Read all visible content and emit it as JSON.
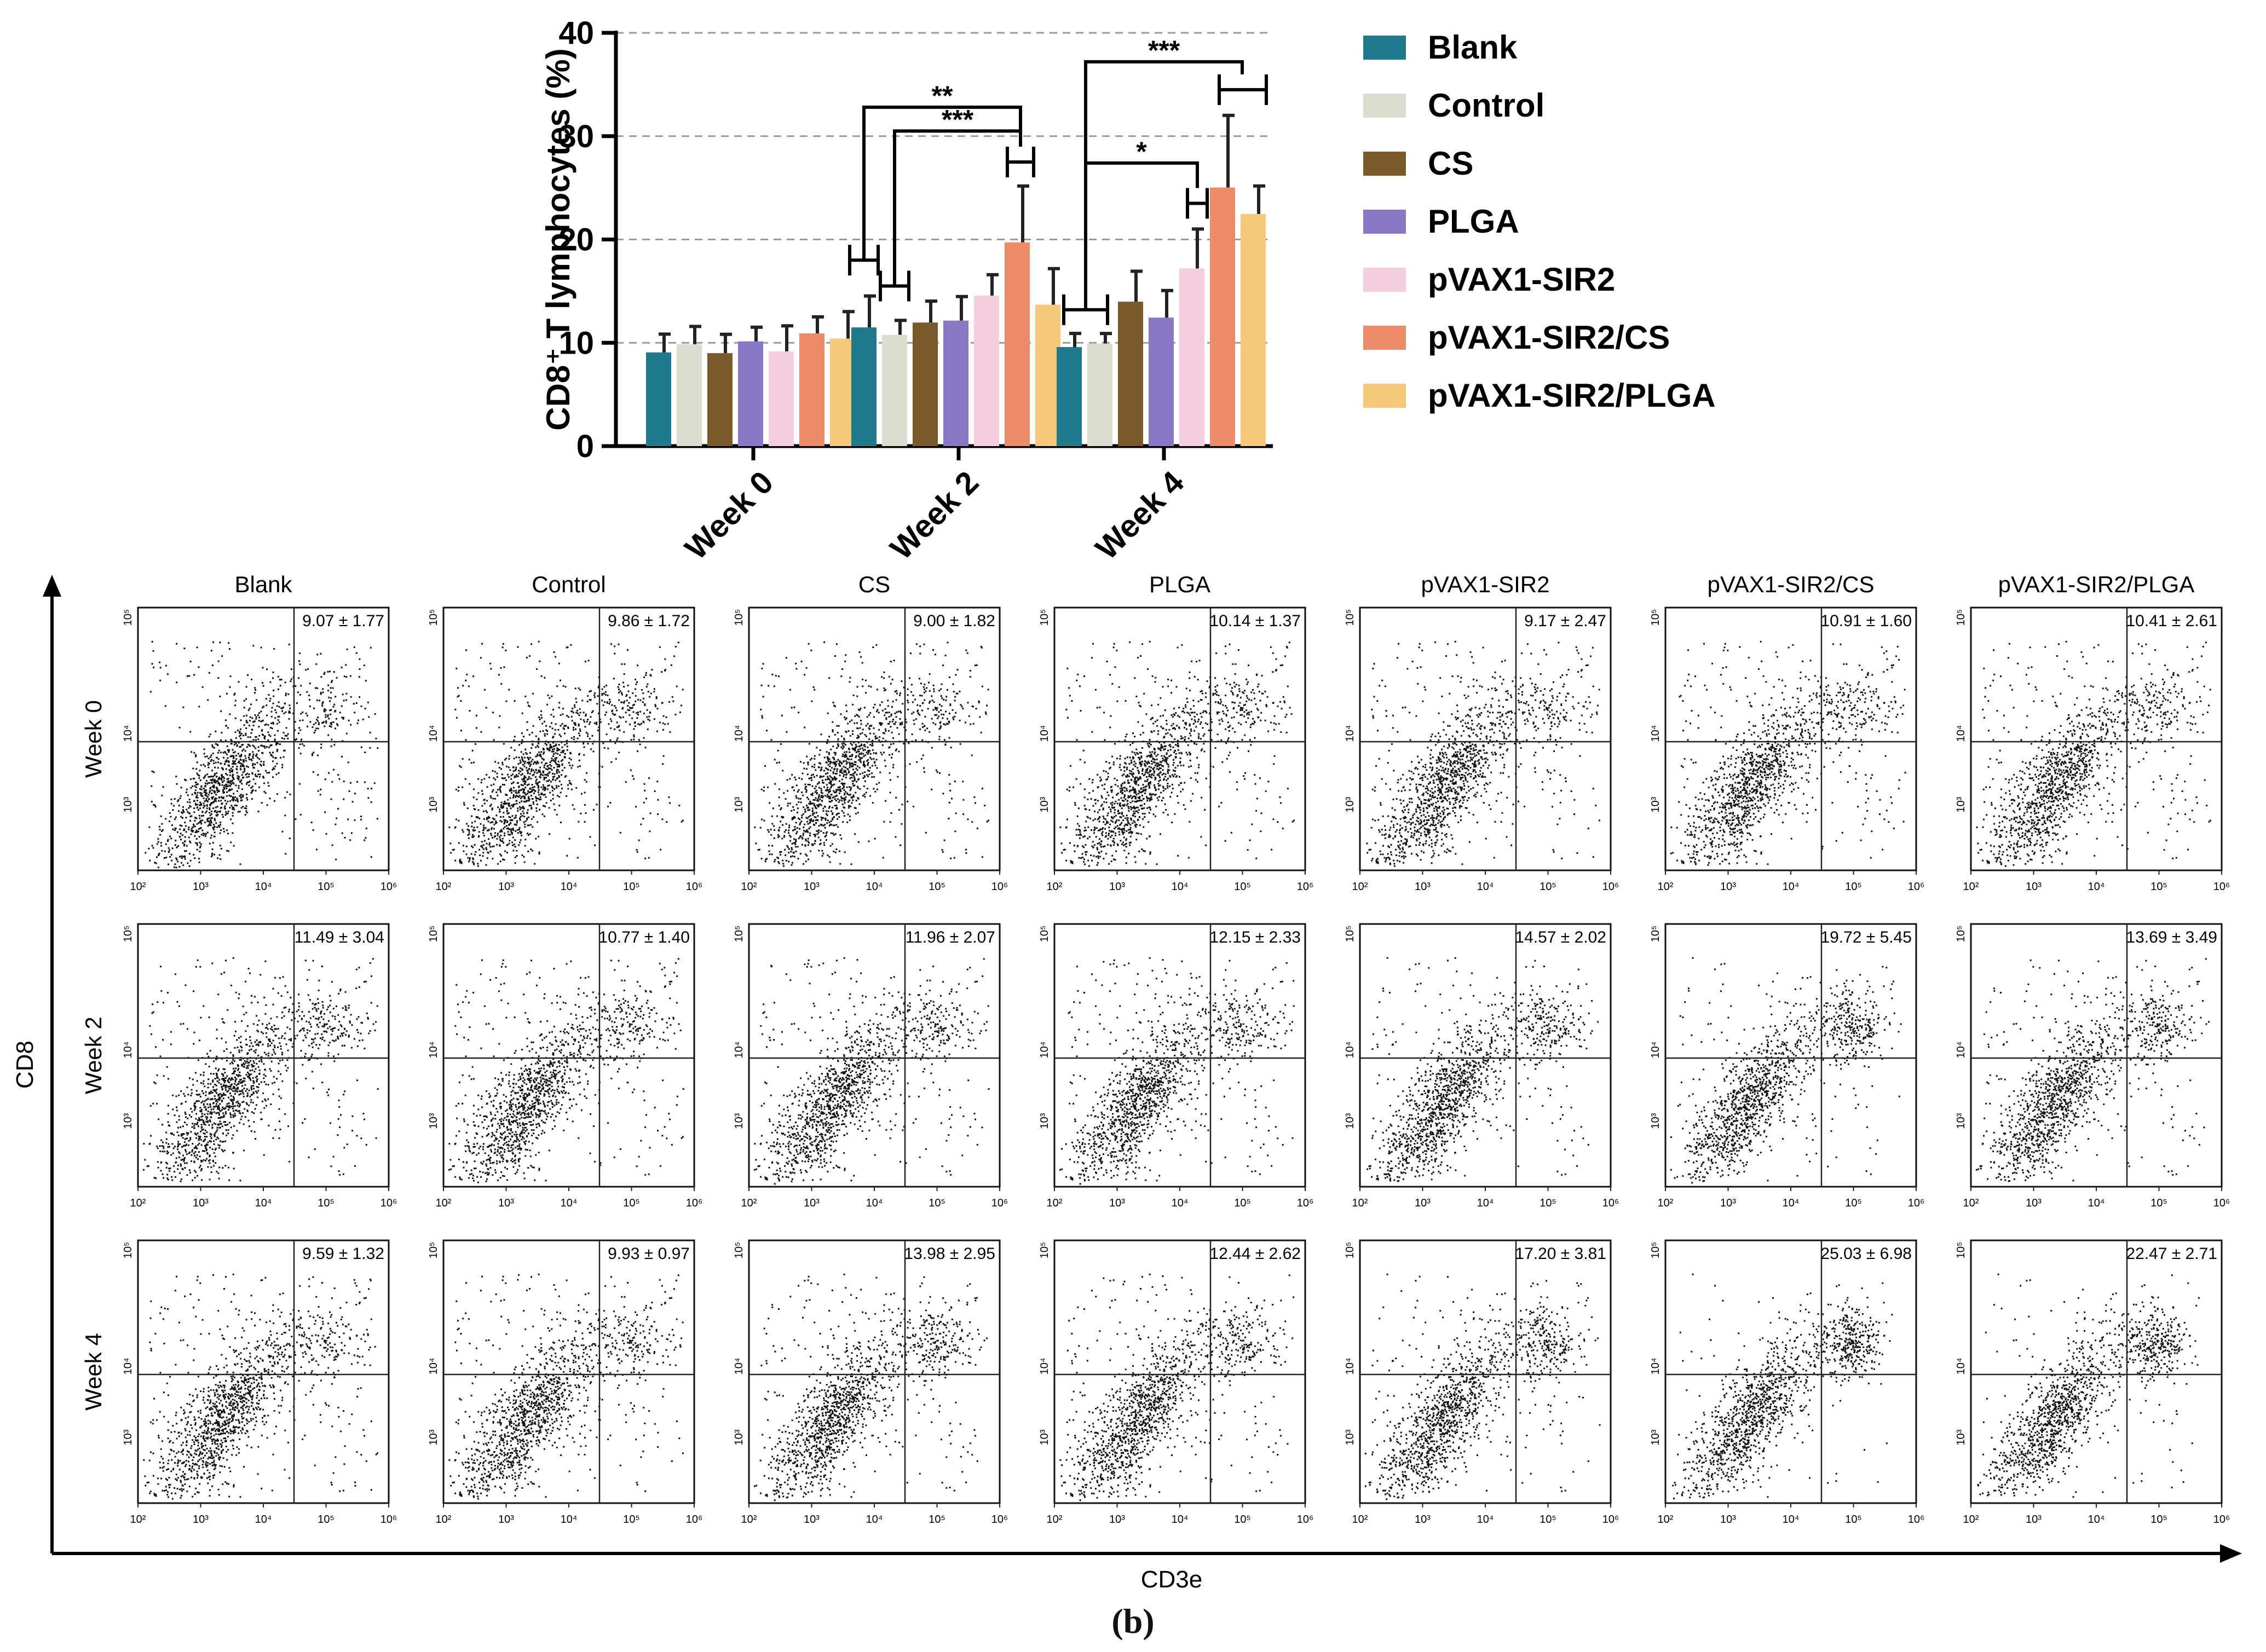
{
  "chart_data": [
    {
      "type": "bar",
      "ylabel": "CD8⁺ T lymphocytes (%)",
      "ylim": [
        0,
        40
      ],
      "yticks": [
        0,
        10,
        20,
        30,
        40
      ],
      "grid": "dashed-horizontal",
      "legend_position": "right",
      "categories": [
        "Week 0",
        "Week 2",
        "Week 4"
      ],
      "series": [
        {
          "name": "Blank",
          "color": "#1f7a8c",
          "values": [
            9.07,
            11.49,
            9.59
          ],
          "errors": [
            1.77,
            3.04,
            1.32
          ]
        },
        {
          "name": "Control",
          "color": "#dcdccf",
          "values": [
            9.86,
            10.77,
            9.93
          ],
          "errors": [
            1.72,
            1.4,
            0.97
          ]
        },
        {
          "name": "CS",
          "color": "#7a5a2a",
          "values": [
            9.0,
            11.96,
            13.98
          ],
          "errors": [
            1.82,
            2.07,
            2.95
          ]
        },
        {
          "name": "PLGA",
          "color": "#8b78c4",
          "values": [
            10.14,
            12.15,
            12.44
          ],
          "errors": [
            1.37,
            2.33,
            2.62
          ]
        },
        {
          "name": "pVAX1-SIR2",
          "color": "#f3cfe0",
          "values": [
            9.17,
            14.57,
            17.2
          ],
          "errors": [
            2.47,
            2.02,
            3.81
          ]
        },
        {
          "name": "pVAX1-SIR2/CS",
          "color": "#ee8c6a",
          "values": [
            10.91,
            19.72,
            25.03
          ],
          "errors": [
            1.6,
            5.45,
            6.98
          ]
        },
        {
          "name": "pVAX1-SIR2/PLGA",
          "color": "#f6c97a",
          "values": [
            10.41,
            13.69,
            22.47
          ],
          "errors": [
            2.61,
            3.49,
            2.71
          ]
        }
      ],
      "significance": [
        {
          "category": "Week 2",
          "label": "**"
        },
        {
          "category": "Week 2",
          "label": "***"
        },
        {
          "category": "Week 4",
          "label": "***"
        },
        {
          "category": "Week 4",
          "label": "*"
        }
      ]
    },
    {
      "type": "scatter",
      "xlabel": "CD3e",
      "ylabel": "CD8",
      "columns": [
        "Blank",
        "Control",
        "CS",
        "PLGA",
        "pVAX1-SIR2",
        "pVAX1-SIR2/CS",
        "pVAX1-SIR2/PLGA"
      ],
      "rows": [
        "Week 0",
        "Week 2",
        "Week 4"
      ],
      "x_tick_labels": [
        "10²",
        "10³",
        "10⁴",
        "10⁵",
        "10⁶"
      ],
      "y_tick_labels": [
        "10³",
        "10⁴",
        "10⁵"
      ],
      "panel_labels": [
        [
          "9.07 ± 1.77",
          "9.86 ± 1.72",
          "9.00 ± 1.82",
          "10.14 ± 1.37",
          "9.17 ± 2.47",
          "10.91 ± 1.60",
          "10.41 ± 2.61"
        ],
        [
          "11.49 ± 3.04",
          "10.77 ± 1.40",
          "11.96 ± 2.07",
          "12.15 ± 2.33",
          "14.57 ± 2.02",
          "19.72 ± 5.45",
          "13.69 ± 3.49"
        ],
        [
          "9.59 ± 1.32",
          "9.93 ± 0.97",
          "13.98 ± 2.95",
          "12.44 ± 2.62",
          "17.20 ± 3.81",
          "25.03 ± 6.98",
          "22.47 ± 2.71"
        ]
      ]
    }
  ],
  "caption": "(b)"
}
